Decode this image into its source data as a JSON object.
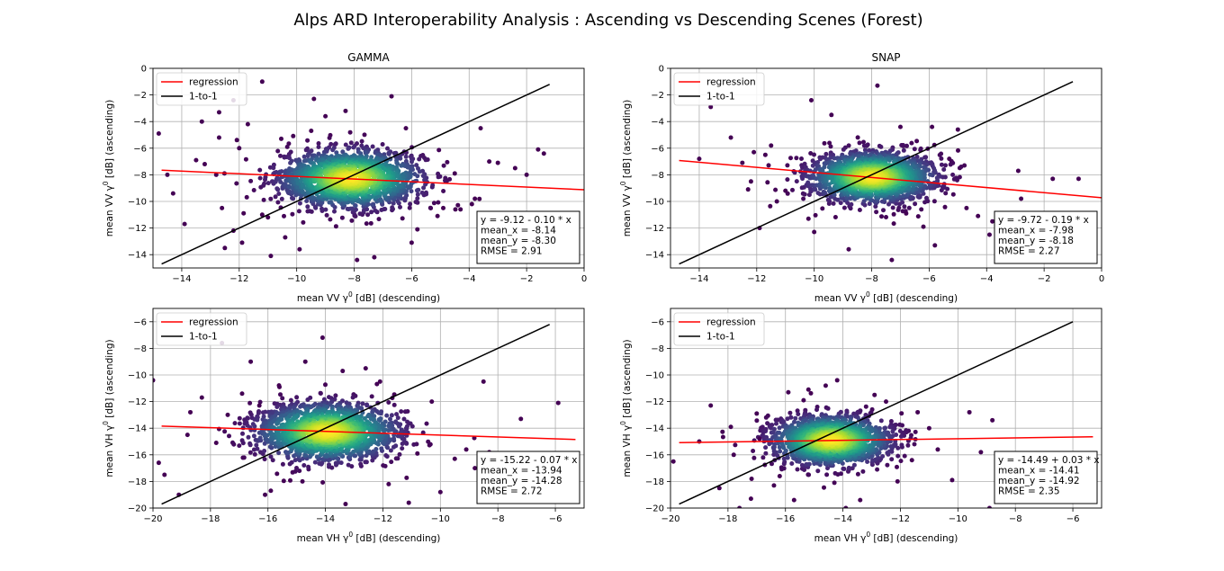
{
  "title": "Alps ARD Interoperability Analysis : Ascending vs Descending Scenes (Forest)",
  "colors": {
    "regression": "#ff0000",
    "one_to_one": "#000000",
    "grid": "#b0b0b0",
    "density_low": "#440154",
    "density_high": "#fde725"
  },
  "chart_data": [
    {
      "type": "scatter",
      "title": "GAMMA",
      "xlabel_prefix": "mean VV ",
      "xlabel_suffix": " [dB] (descending)",
      "ylabel_prefix": "mean VV ",
      "ylabel_suffix": " [dB] (ascending)",
      "gamma_symbol": "γ",
      "gamma_sup": "0",
      "xlim": [
        -15,
        0
      ],
      "ylim": [
        -15,
        0
      ],
      "xticks": [
        -14,
        -12,
        -10,
        -8,
        -6,
        -4,
        -2,
        0
      ],
      "yticks": [
        -14,
        -12,
        -10,
        -8,
        -6,
        -4,
        -2,
        0
      ],
      "grid": true,
      "legend": [
        "regression",
        "1-to-1"
      ],
      "legend_placement": "top-left",
      "regression": {
        "intercept": -9.12,
        "slope": -0.1,
        "x_range": [
          -14.7,
          0
        ]
      },
      "one_to_one_range": [
        -14.7,
        -1.2
      ],
      "cluster": {
        "center_x": -8.14,
        "center_y": -8.3,
        "sd_x": 1.25,
        "sd_y": 1.1,
        "count": 1700
      },
      "outliers": [
        [
          -14.3,
          -9.4
        ],
        [
          -14.8,
          -4.9
        ],
        [
          -14.5,
          -8.0
        ],
        [
          -13.9,
          -11.7
        ],
        [
          -13.5,
          -6.9
        ],
        [
          -13.2,
          -7.2
        ],
        [
          -13.3,
          -4.0
        ],
        [
          -12.7,
          -5.2
        ],
        [
          -12.7,
          -3.3
        ],
        [
          -12.8,
          -8.0
        ],
        [
          -12.6,
          -10.5
        ],
        [
          -12.5,
          -13.5
        ],
        [
          -12.2,
          -2.4
        ],
        [
          -12.0,
          -6.0
        ],
        [
          -11.9,
          -13.1
        ],
        [
          -11.7,
          -4.2
        ],
        [
          -12.2,
          -12.2
        ],
        [
          -11.2,
          -1.0
        ],
        [
          -11.0,
          -11.2
        ],
        [
          -10.9,
          -14.1
        ],
        [
          -10.4,
          -12.7
        ],
        [
          -9.4,
          -2.3
        ],
        [
          -8.3,
          -3.2
        ],
        [
          -9.0,
          -3.6
        ],
        [
          -7.3,
          -14.2
        ],
        [
          -6.7,
          -2.1
        ],
        [
          -6.2,
          -4.5
        ],
        [
          -5.8,
          -12.1
        ],
        [
          -5.1,
          -11.1
        ],
        [
          -4.5,
          -7.9
        ],
        [
          -4.3,
          -10.6
        ],
        [
          -3.6,
          -4.5
        ],
        [
          -3.3,
          -7.0
        ],
        [
          -3.0,
          -7.1
        ],
        [
          -2.4,
          -7.5
        ],
        [
          -2.0,
          -8.0
        ],
        [
          -1.6,
          -6.1
        ],
        [
          -1.4,
          -6.4
        ],
        [
          -3.8,
          -9.8
        ],
        [
          -4.9,
          -10.5
        ],
        [
          -6.0,
          -13.1
        ],
        [
          -9.9,
          -13.6
        ],
        [
          -11.2,
          -11.0
        ],
        [
          -7.9,
          -14.4
        ]
      ],
      "stats_lines": [
        "y = -9.12 - 0.10 * x",
        "mean_x = -8.14",
        "mean_y = -8.30",
        "RMSE = 2.91"
      ]
    },
    {
      "type": "scatter",
      "title": "SNAP",
      "xlabel_prefix": "mean VV ",
      "xlabel_suffix": " [dB] (descending)",
      "ylabel_prefix": "mean VV ",
      "ylabel_suffix": " [dB] (ascending)",
      "gamma_symbol": "γ",
      "gamma_sup": "0",
      "xlim": [
        -15,
        0
      ],
      "ylim": [
        -15,
        0
      ],
      "xticks": [
        -14,
        -12,
        -10,
        -8,
        -6,
        -4,
        -2,
        0
      ],
      "yticks": [
        -14,
        -12,
        -10,
        -8,
        -6,
        -4,
        -2,
        0
      ],
      "grid": true,
      "legend": [
        "regression",
        "1-to-1"
      ],
      "legend_placement": "top-left",
      "regression": {
        "intercept": -9.72,
        "slope": -0.19,
        "x_range": [
          -14.7,
          0
        ]
      },
      "one_to_one_range": [
        -14.7,
        -1.0
      ],
      "cluster": {
        "center_x": -7.98,
        "center_y": -8.18,
        "sd_x": 1.1,
        "sd_y": 0.95,
        "count": 1700
      },
      "outliers": [
        [
          -14.0,
          -6.8
        ],
        [
          -13.6,
          -2.9
        ],
        [
          -12.9,
          -5.2
        ],
        [
          -12.5,
          -7.1
        ],
        [
          -12.3,
          -9.1
        ],
        [
          -12.2,
          -8.5
        ],
        [
          -12.1,
          -6.3
        ],
        [
          -11.9,
          -12.0
        ],
        [
          -11.5,
          -5.8
        ],
        [
          -11.3,
          -10.0
        ],
        [
          -11.0,
          -9.2
        ],
        [
          -10.1,
          -2.4
        ],
        [
          -10.2,
          -11.3
        ],
        [
          -10.0,
          -12.3
        ],
        [
          -8.8,
          -13.6
        ],
        [
          -7.8,
          -1.3
        ],
        [
          -7.0,
          -4.4
        ],
        [
          -7.3,
          -14.4
        ],
        [
          -6.8,
          -10.9
        ],
        [
          -5.8,
          -13.3
        ],
        [
          -5.9,
          -4.4
        ],
        [
          -5.3,
          -6.8
        ],
        [
          -5.0,
          -4.6
        ],
        [
          -4.7,
          -10.5
        ],
        [
          -4.3,
          -11.1
        ],
        [
          -3.9,
          -12.5
        ],
        [
          -3.8,
          -11.5
        ],
        [
          -2.9,
          -7.7
        ],
        [
          -2.8,
          -9.8
        ],
        [
          -1.7,
          -8.3
        ],
        [
          -0.8,
          -8.3
        ],
        [
          -9.4,
          -3.5
        ],
        [
          -6.2,
          -11.9
        ],
        [
          -11.7,
          -6.5
        ]
      ],
      "stats_lines": [
        "y = -9.72 - 0.19 * x",
        "mean_x = -7.98",
        "mean_y = -8.18",
        "RMSE = 2.27"
      ]
    },
    {
      "type": "scatter",
      "title": "",
      "xlabel_prefix": "mean VH ",
      "xlabel_suffix": " [dB] (descending)",
      "ylabel_prefix": "mean VH ",
      "ylabel_suffix": " [dB] (ascending)",
      "gamma_symbol": "γ",
      "gamma_sup": "0",
      "xlim": [
        -20,
        -5
      ],
      "ylim": [
        -20,
        -5
      ],
      "xticks": [
        -20,
        -18,
        -16,
        -14,
        -12,
        -10,
        -8,
        -6
      ],
      "yticks": [
        -20,
        -18,
        -16,
        -14,
        -12,
        -10,
        -8,
        -6
      ],
      "grid": true,
      "legend": [
        "regression",
        "1-to-1"
      ],
      "legend_placement": "top-left",
      "regression": {
        "intercept": -15.22,
        "slope": -0.07,
        "x_range": [
          -19.7,
          -5.3
        ]
      },
      "one_to_one_range": [
        -19.7,
        -6.2
      ],
      "cluster": {
        "center_x": -13.94,
        "center_y": -14.28,
        "sd_x": 1.25,
        "sd_y": 1.1,
        "count": 1700
      },
      "outliers": [
        [
          -20.0,
          -10.4
        ],
        [
          -19.8,
          -16.6
        ],
        [
          -19.6,
          -17.5
        ],
        [
          -19.1,
          -19.0
        ],
        [
          -18.8,
          -14.5
        ],
        [
          -18.7,
          -12.8
        ],
        [
          -18.3,
          -11.7
        ],
        [
          -17.8,
          -15.1
        ],
        [
          -17.6,
          -7.6
        ],
        [
          -17.4,
          -13.0
        ],
        [
          -16.6,
          -9.0
        ],
        [
          -16.3,
          -12.3
        ],
        [
          -16.1,
          -19.0
        ],
        [
          -15.9,
          -18.7
        ],
        [
          -15.6,
          -10.9
        ],
        [
          -14.8,
          -18.0
        ],
        [
          -14.1,
          -7.2
        ],
        [
          -13.4,
          -9.7
        ],
        [
          -13.3,
          -19.7
        ],
        [
          -12.1,
          -10.5
        ],
        [
          -11.8,
          -18.2
        ],
        [
          -11.1,
          -19.6
        ],
        [
          -10.3,
          -12.0
        ],
        [
          -10.0,
          -18.8
        ],
        [
          -9.5,
          -16.3
        ],
        [
          -9.1,
          -15.6
        ],
        [
          -8.8,
          -17.0
        ],
        [
          -8.5,
          -10.5
        ],
        [
          -8.3,
          -15.8
        ],
        [
          -7.2,
          -13.3
        ],
        [
          -5.9,
          -12.1
        ],
        [
          -10.8,
          -15.9
        ],
        [
          -14.7,
          -9.0
        ],
        [
          -12.6,
          -9.5
        ],
        [
          -16.9,
          -11.4
        ]
      ],
      "stats_lines": [
        "y = -15.22 - 0.07 * x",
        "mean_x = -13.94",
        "mean_y = -14.28",
        "RMSE = 2.72"
      ]
    },
    {
      "type": "scatter",
      "title": "",
      "xlabel_prefix": "mean VH ",
      "xlabel_suffix": " [dB] (descending)",
      "ylabel_prefix": "mean VH ",
      "ylabel_suffix": " [dB] (ascending)",
      "gamma_symbol": "γ",
      "gamma_sup": "0",
      "xlim": [
        -20,
        -5
      ],
      "ylim": [
        -20,
        -5
      ],
      "xticks": [
        -20,
        -18,
        -16,
        -14,
        -12,
        -10,
        -8,
        -6
      ],
      "yticks": [
        -20,
        -18,
        -16,
        -14,
        -12,
        -10,
        -8,
        -6
      ],
      "grid": true,
      "legend": [
        "regression",
        "1-to-1"
      ],
      "legend_placement": "top-left",
      "regression": {
        "intercept": -14.49,
        "slope": 0.03,
        "x_range": [
          -19.7,
          -5.3
        ]
      },
      "one_to_one_range": [
        -19.7,
        -6.0
      ],
      "cluster": {
        "center_x": -14.41,
        "center_y": -14.92,
        "sd_x": 1.05,
        "sd_y": 0.95,
        "count": 1600
      },
      "outliers": [
        [
          -19.9,
          -16.5
        ],
        [
          -19.0,
          -15.0
        ],
        [
          -18.6,
          -12.3
        ],
        [
          -18.3,
          -18.5
        ],
        [
          -17.9,
          -13.9
        ],
        [
          -17.8,
          -16.0
        ],
        [
          -17.6,
          -20.0
        ],
        [
          -17.2,
          -19.3
        ],
        [
          -16.9,
          -14.8
        ],
        [
          -16.4,
          -18.3
        ],
        [
          -15.9,
          -11.3
        ],
        [
          -15.7,
          -19.4
        ],
        [
          -15.2,
          -11.1
        ],
        [
          -14.6,
          -10.8
        ],
        [
          -13.9,
          -20.0
        ],
        [
          -13.4,
          -19.4
        ],
        [
          -12.5,
          -12.0
        ],
        [
          -12.1,
          -18.0
        ],
        [
          -11.6,
          -16.4
        ],
        [
          -11.4,
          -12.8
        ],
        [
          -11.0,
          -14.0
        ],
        [
          -10.7,
          -15.6
        ],
        [
          -10.2,
          -17.9
        ],
        [
          -9.2,
          -15.8
        ],
        [
          -8.8,
          -13.4
        ],
        [
          -9.6,
          -12.8
        ],
        [
          -12.9,
          -11.5
        ],
        [
          -16.2,
          -17.6
        ],
        [
          -17.0,
          -12.9
        ],
        [
          -14.2,
          -10.4
        ],
        [
          -8.9,
          -20.0
        ]
      ],
      "stats_lines": [
        "y = -14.49 + 0.03 * x",
        "mean_x = -14.41",
        "mean_y = -14.92",
        "RMSE = 2.35"
      ]
    }
  ]
}
